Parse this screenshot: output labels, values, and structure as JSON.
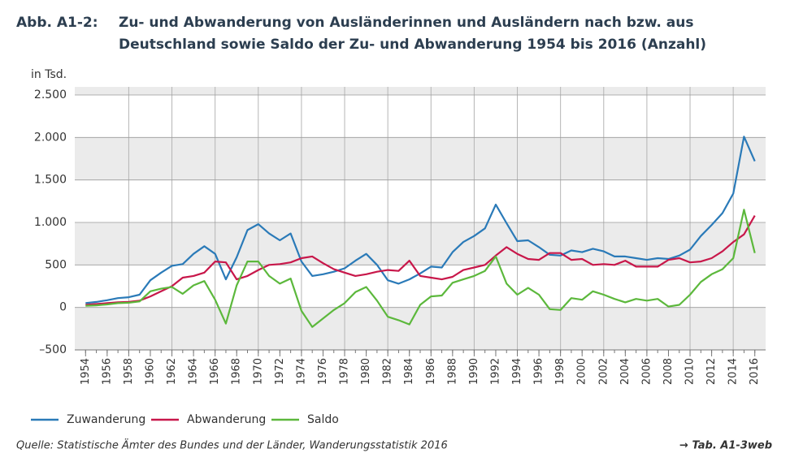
{
  "chart_data": {
    "type": "line",
    "figure_label": "Abb. A1-2:",
    "title": [
      "Zu- und Abwanderung von Ausländerinnen und Ausländern nach bzw. aus",
      "Deutschland sowie Saldo der Zu- und Abwanderung 1954 bis 2016 (Anzahl)"
    ],
    "y_label": "in Tsd.",
    "source": "Quelle: Statistische Ämter des Bundes und der Länder, Wanderungsstatistik 2016",
    "reference": "→ Tab. A1-3web",
    "x": [
      1954,
      1955,
      1956,
      1957,
      1958,
      1959,
      1960,
      1961,
      1962,
      1963,
      1964,
      1965,
      1966,
      1967,
      1968,
      1969,
      1970,
      1971,
      1972,
      1973,
      1974,
      1975,
      1976,
      1977,
      1978,
      1979,
      1980,
      1981,
      1982,
      1983,
      1984,
      1985,
      1986,
      1987,
      1988,
      1989,
      1990,
      1991,
      1992,
      1993,
      1994,
      1995,
      1996,
      1997,
      1998,
      1999,
      2000,
      2001,
      2002,
      2003,
      2004,
      2005,
      2006,
      2007,
      2008,
      2009,
      2010,
      2011,
      2012,
      2013,
      2014,
      2015,
      2016
    ],
    "xlim": [
      1953,
      2017
    ],
    "xticks": [
      1954,
      1956,
      1958,
      1960,
      1962,
      1964,
      1966,
      1968,
      1970,
      1972,
      1974,
      1976,
      1978,
      1980,
      1982,
      1984,
      1986,
      1988,
      1990,
      1992,
      1994,
      1996,
      1998,
      2000,
      2002,
      2004,
      2006,
      2008,
      2010,
      2012,
      2014,
      2016
    ],
    "ylim": [
      -500,
      2500
    ],
    "yticks": [
      {
        "value": -500,
        "label": "–500"
      },
      0,
      500,
      {
        "value": 1000,
        "label": "1.000"
      },
      {
        "value": 1500,
        "label": "1.500"
      },
      {
        "value": 2000,
        "label": "2.000"
      },
      {
        "value": 2500,
        "label": "2.500"
      }
    ],
    "grid": true,
    "legend": "bottom-left",
    "series": [
      {
        "name": "Zuwanderung",
        "color": "#2a7ab8",
        "values": [
          50,
          65,
          85,
          110,
          120,
          150,
          320,
          410,
          490,
          510,
          630,
          720,
          630,
          330,
          590,
          910,
          980,
          870,
          790,
          870,
          540,
          370,
          390,
          420,
          460,
          550,
          630,
          500,
          320,
          280,
          330,
          400,
          480,
          470,
          650,
          770,
          840,
          930,
          1210,
          990,
          780,
          790,
          710,
          620,
          610,
          670,
          650,
          690,
          660,
          600,
          600,
          580,
          560,
          580,
          570,
          610,
          680,
          840,
          970,
          1110,
          1340,
          2010,
          1720
        ]
      },
      {
        "name": "Abwanderung",
        "color": "#c8174a",
        "values": [
          30,
          40,
          50,
          60,
          65,
          80,
          130,
          190,
          250,
          350,
          370,
          410,
          540,
          530,
          330,
          370,
          440,
          500,
          510,
          530,
          580,
          600,
          520,
          450,
          410,
          370,
          390,
          420,
          440,
          430,
          550,
          370,
          350,
          330,
          360,
          440,
          470,
          500,
          610,
          710,
          630,
          570,
          560,
          640,
          640,
          560,
          570,
          500,
          510,
          500,
          550,
          480,
          480,
          480,
          560,
          580,
          530,
          540,
          580,
          660,
          770,
          860,
          1080
        ]
      },
      {
        "name": "Saldo",
        "color": "#5cb83c",
        "values": [
          20,
          25,
          35,
          50,
          55,
          70,
          190,
          220,
          240,
          160,
          260,
          310,
          90,
          -190,
          260,
          540,
          540,
          370,
          280,
          340,
          -40,
          -230,
          -130,
          -30,
          50,
          180,
          240,
          80,
          -110,
          -150,
          -200,
          30,
          130,
          140,
          290,
          330,
          370,
          430,
          600,
          280,
          150,
          230,
          150,
          -20,
          -30,
          110,
          90,
          190,
          150,
          100,
          60,
          100,
          80,
          100,
          10,
          30,
          150,
          300,
          390,
          450,
          580,
          1150,
          640
        ]
      }
    ]
  }
}
